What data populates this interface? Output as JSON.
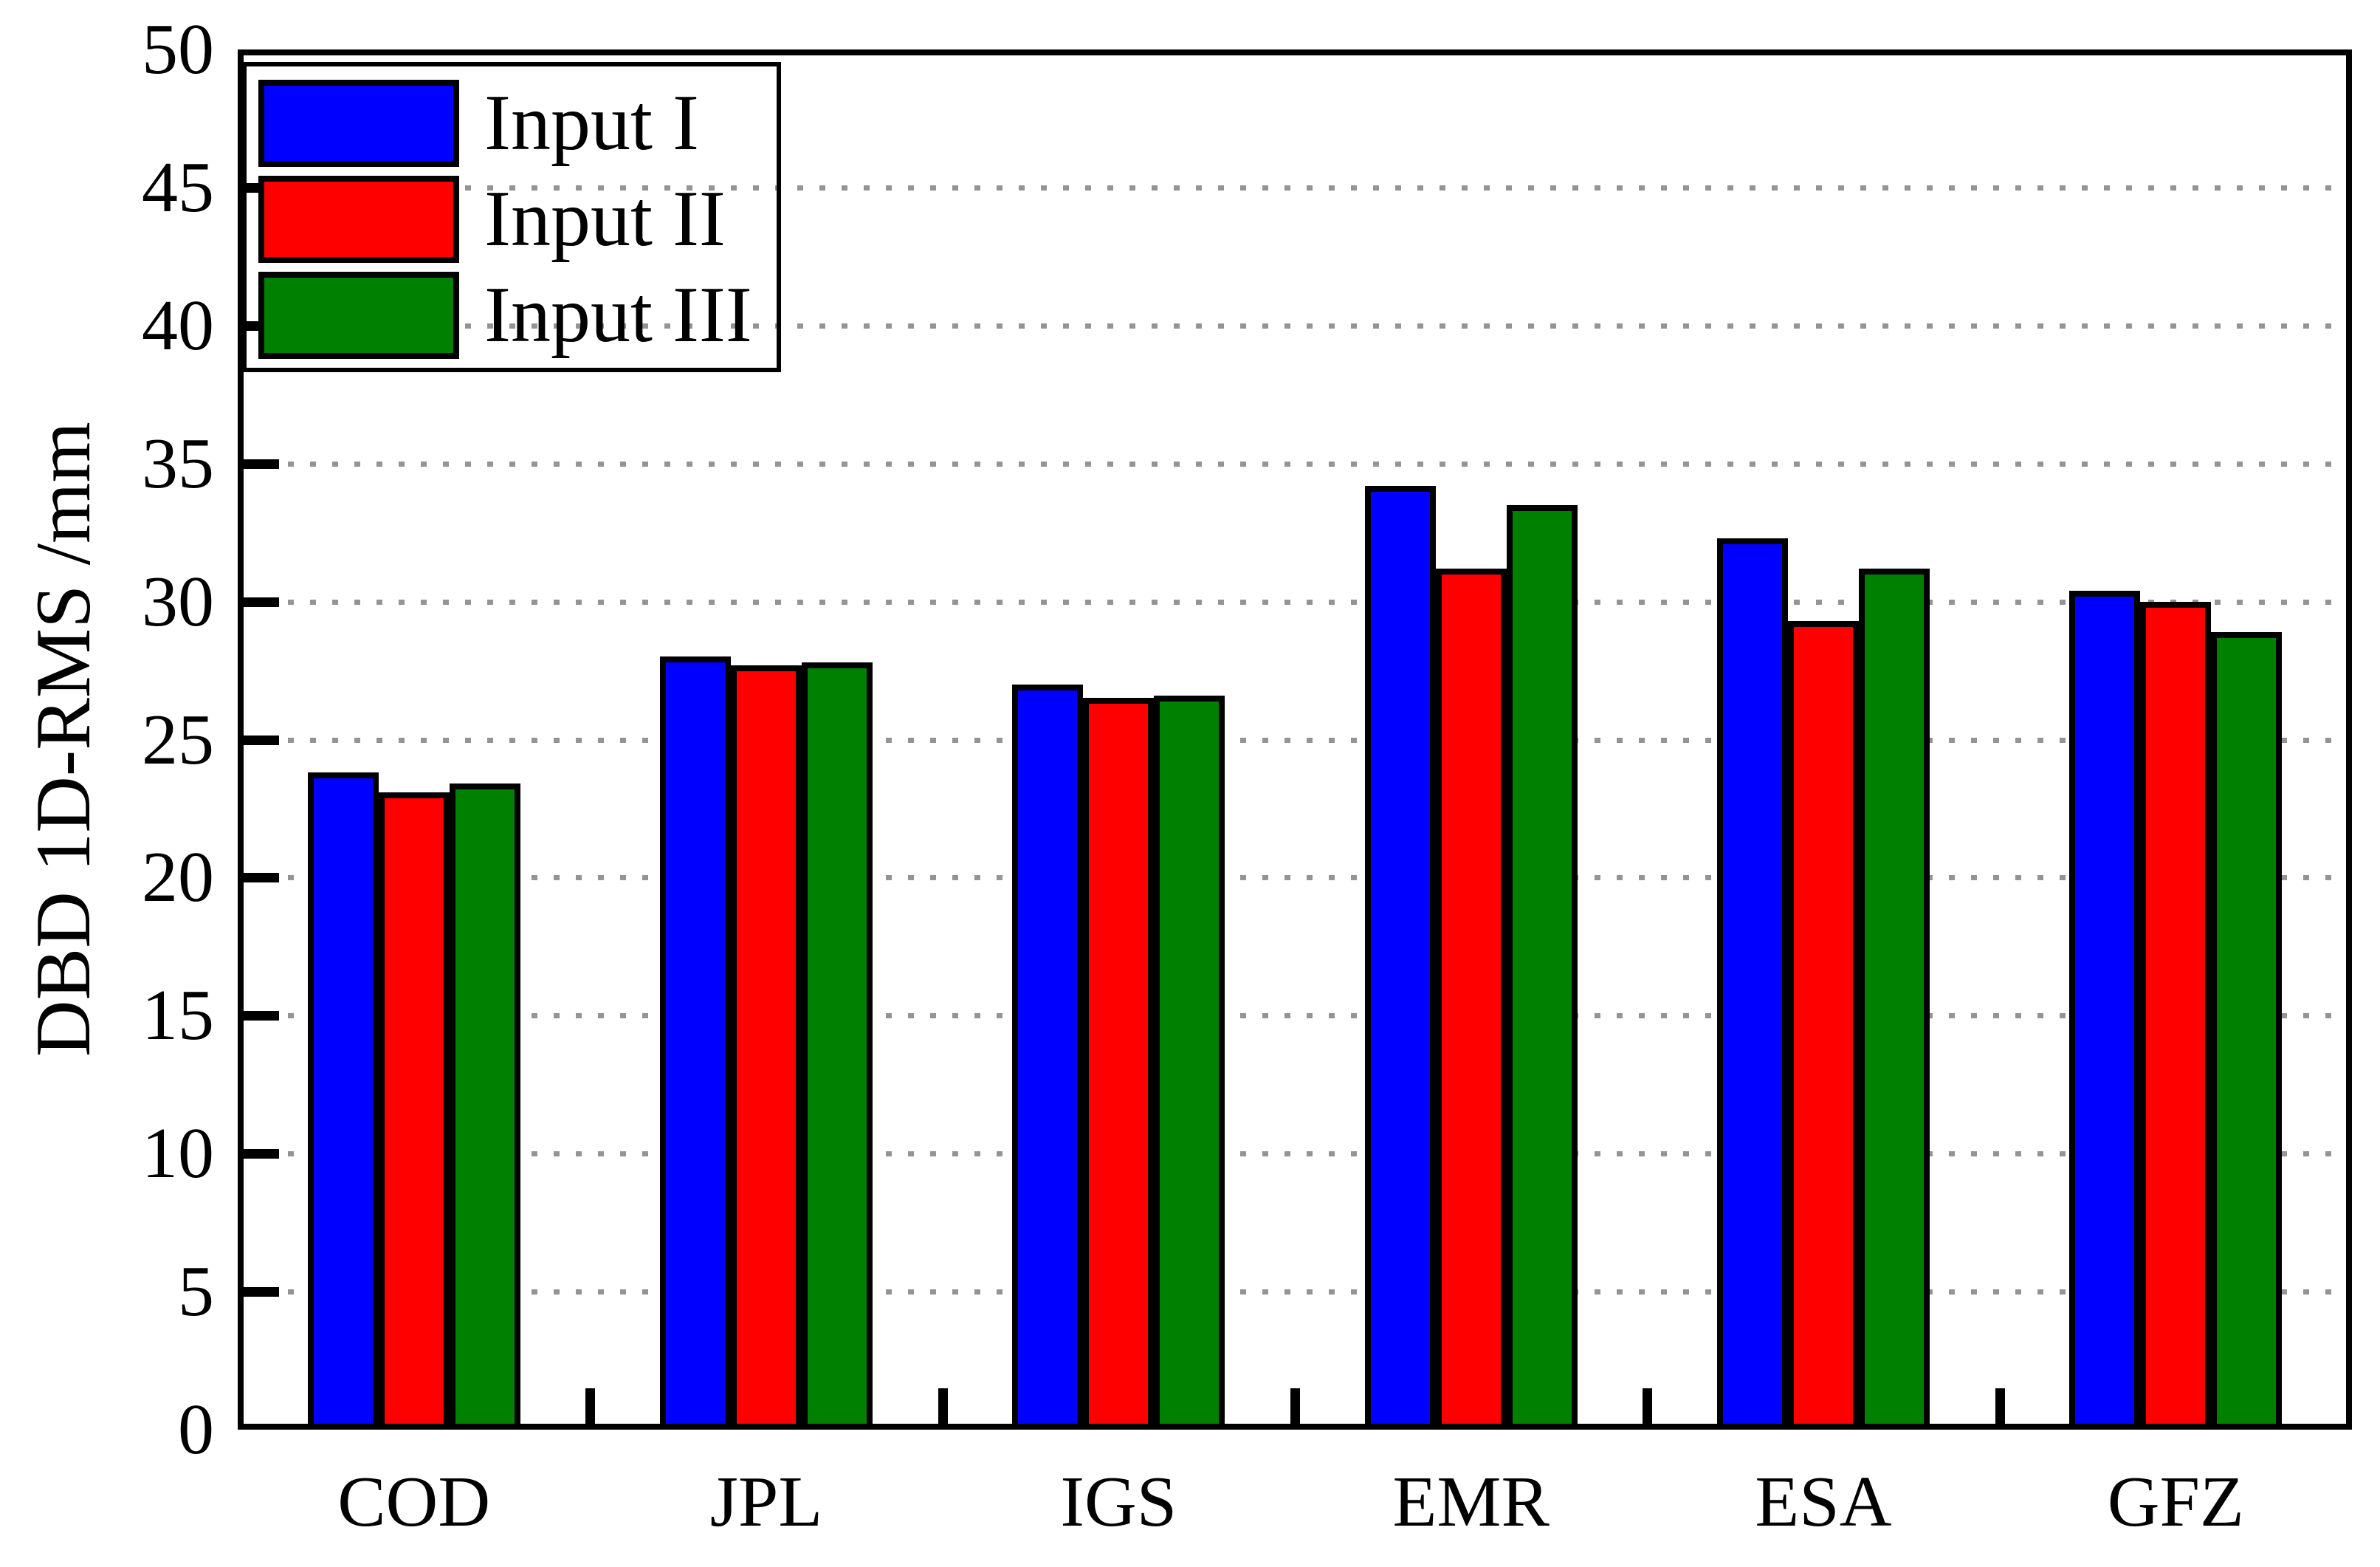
{
  "chart_data": {
    "type": "bar",
    "title": "",
    "xlabel": "",
    "ylabel": "DBD 1D-RMS /mm",
    "categories": [
      "COD",
      "JPL",
      "IGS",
      "EMR",
      "ESA",
      "GFZ"
    ],
    "series": [
      {
        "name": "Input I",
        "color": "#0000ff",
        "values": [
          23.8,
          28.0,
          27.0,
          34.2,
          32.3,
          30.4
        ]
      },
      {
        "name": "Input II",
        "color": "#ff0000",
        "values": [
          23.1,
          27.7,
          26.5,
          31.2,
          29.3,
          30.0
        ]
      },
      {
        "name": "Input III",
        "color": "#008000",
        "values": [
          23.4,
          27.8,
          26.6,
          33.5,
          31.2,
          28.9
        ]
      }
    ],
    "ylim": [
      0,
      50
    ],
    "ytick_values": [
      0,
      5,
      10,
      15,
      20,
      25,
      30,
      35,
      40,
      45,
      50
    ],
    "grid_values": [
      5,
      10,
      15,
      20,
      25,
      30,
      35,
      40,
      45
    ],
    "grid_style": "horizontal dotted",
    "grid_color": "#949494",
    "bar_border_color": "#000000",
    "frame_color": "#000000",
    "legend_position": "top-left",
    "legend_labels": [
      "Input I",
      "Input II",
      "Input III"
    ]
  }
}
